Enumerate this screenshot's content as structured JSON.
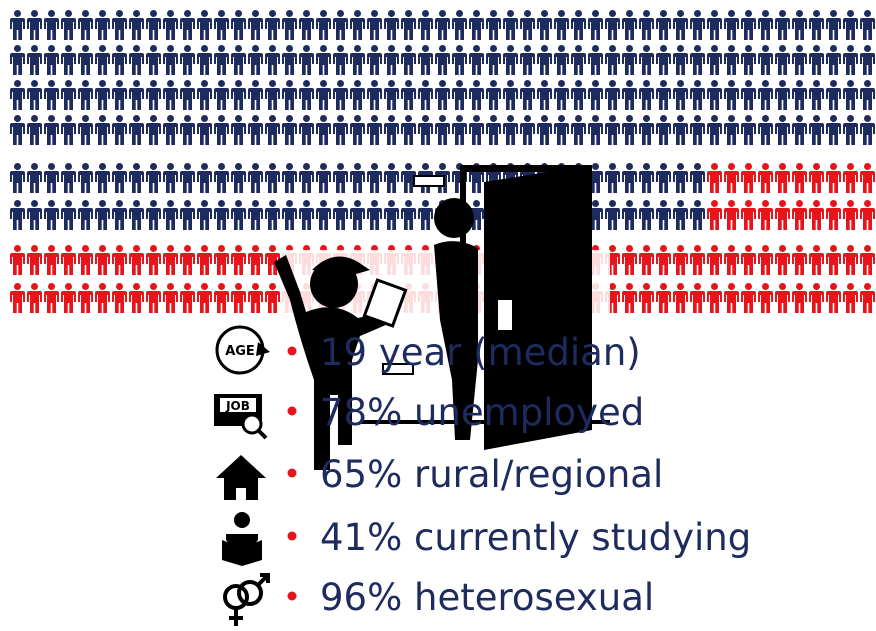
{
  "icons": {
    "age": "AGE",
    "job": "JOB"
  },
  "bullets": [
    "19 year (median)",
    "78% unemployed",
    "65% rural/regional",
    "41% currently studying",
    "96% heterosexual"
  ]
}
